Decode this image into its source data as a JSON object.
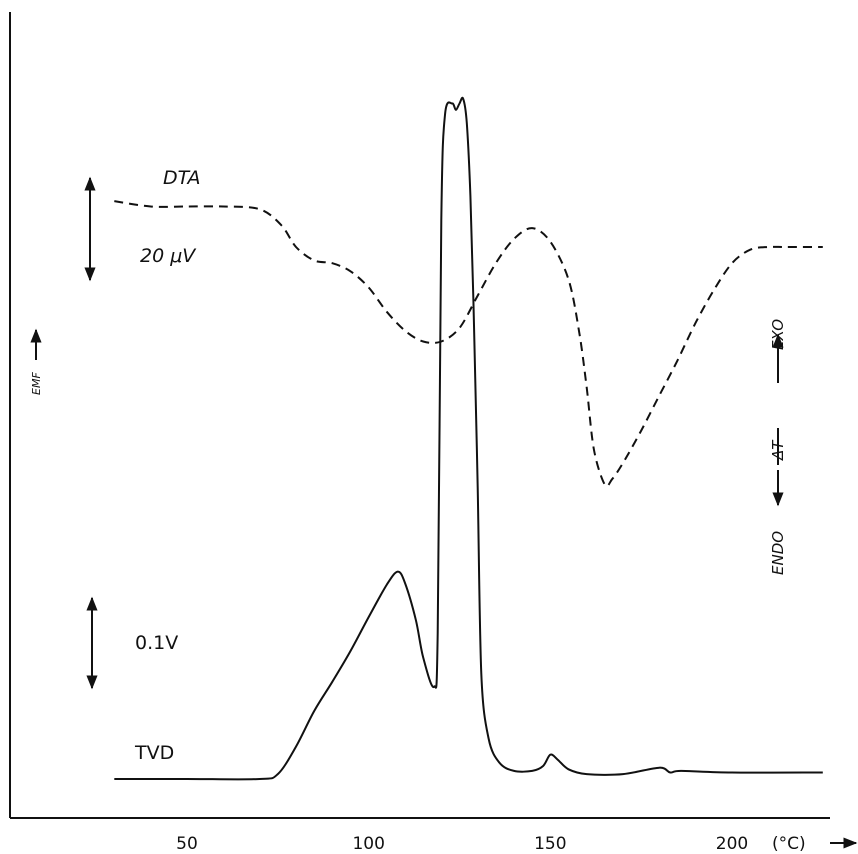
{
  "chart_data": {
    "type": "line",
    "x_unit": "(°C)",
    "xlim": [
      25,
      230
    ],
    "x_ticks": [
      50,
      100,
      150,
      200
    ],
    "y_axis_label": "EMF",
    "right_axis": {
      "endo": "ENDO",
      "delta_t": "ΔT",
      "exo": "EXO"
    },
    "scale_bars": {
      "dta": {
        "label": "20 μV"
      },
      "tvd": {
        "label": "0.1V"
      }
    },
    "series": [
      {
        "name": "DTA",
        "style": "dashed",
        "x": [
          30,
          40,
          50,
          60,
          70,
          76,
          80,
          85,
          90,
          95,
          100,
          105,
          110,
          115,
          120,
          125,
          130,
          135,
          140,
          145,
          150,
          155,
          158,
          160,
          162,
          165,
          167,
          170,
          175,
          180,
          185,
          190,
          195,
          200,
          205,
          210,
          215,
          225
        ],
        "y": [
          0.97,
          0.95,
          0.95,
          0.95,
          0.94,
          0.88,
          0.8,
          0.75,
          0.74,
          0.71,
          0.65,
          0.56,
          0.49,
          0.45,
          0.45,
          0.5,
          0.62,
          0.74,
          0.83,
          0.87,
          0.82,
          0.68,
          0.48,
          0.28,
          0.05,
          -0.08,
          -0.06,
          0.0,
          0.12,
          0.25,
          0.38,
          0.52,
          0.64,
          0.74,
          0.79,
          0.8,
          0.8,
          0.8
        ]
      },
      {
        "name": "TVD",
        "style": "solid",
        "x": [
          30,
          50,
          70,
          75,
          80,
          85,
          90,
          95,
          100,
          105,
          108,
          110,
          113,
          115,
          118,
          119,
          120,
          121,
          123,
          124,
          125,
          126,
          127,
          128,
          129,
          130,
          131,
          133,
          136,
          140,
          145,
          148,
          150,
          152,
          155,
          160,
          170,
          180,
          183,
          186,
          200,
          225
        ],
        "y": [
          0.0,
          0.0,
          0.0,
          0.03,
          0.2,
          0.42,
          0.6,
          0.79,
          1.0,
          1.2,
          1.28,
          1.21,
          0.98,
          0.75,
          0.57,
          0.9,
          3.45,
          4.1,
          4.17,
          4.13,
          4.17,
          4.2,
          4.05,
          3.6,
          2.8,
          1.8,
          0.65,
          0.25,
          0.1,
          0.05,
          0.05,
          0.08,
          0.15,
          0.12,
          0.06,
          0.03,
          0.03,
          0.07,
          0.04,
          0.05,
          0.04,
          0.04
        ]
      }
    ]
  }
}
